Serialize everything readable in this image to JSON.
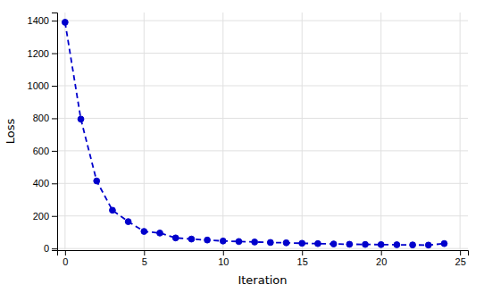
{
  "chart_data": {
    "type": "line",
    "x": [
      0,
      1,
      2,
      3,
      4,
      5,
      6,
      7,
      8,
      9,
      10,
      11,
      12,
      13,
      14,
      15,
      16,
      17,
      18,
      19,
      20,
      21,
      22,
      23,
      24
    ],
    "values": [
      1390,
      795,
      415,
      235,
      165,
      105,
      95,
      65,
      58,
      52,
      46,
      43,
      40,
      37,
      35,
      32,
      30,
      28,
      26,
      25,
      24,
      23,
      22,
      21,
      30
    ],
    "color": "#0000cc",
    "marker": "circle",
    "line_style": "dashed",
    "xlabel": "Iteration",
    "ylabel": "Loss",
    "xlim": [
      -0.5,
      25.5
    ],
    "ylim": [
      -10,
      1450
    ],
    "xticks": [
      0,
      5,
      10,
      15,
      20,
      25
    ],
    "yticks": [
      0,
      200,
      400,
      600,
      800,
      1000,
      1200,
      1400
    ],
    "grid": true
  }
}
